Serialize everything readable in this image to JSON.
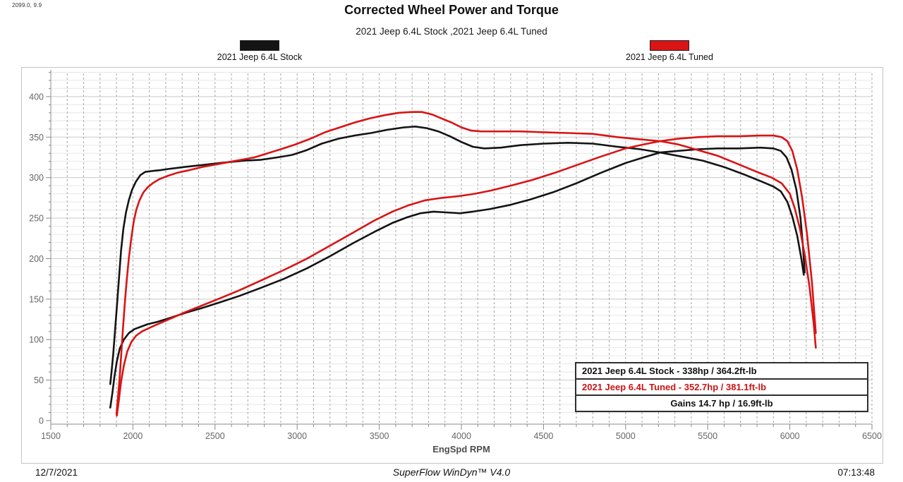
{
  "corner_readout": "2099.0, 9.9",
  "header": {
    "title": "Corrected Wheel Power and Torque",
    "subtitle": "2021 Jeep 6.4L Stock ,2021 Jeep 6.4L Tuned"
  },
  "legend": {
    "stock": {
      "label": "2021 Jeep 6.4L Stock",
      "color": "#141414"
    },
    "tuned": {
      "label": "2021 Jeep 6.4L Tuned",
      "color": "#d91414"
    }
  },
  "results_box": {
    "stock_line": "2021 Jeep 6.4L Stock - 338hp / 364.2ft-lb",
    "tuned_line": "2021 Jeep 6.4L Tuned - 352.7hp / 381.1ft-lb",
    "gains_line": "Gains 14.7 hp / 16.9ft-lb"
  },
  "footer": {
    "date": "12/7/2021",
    "software": "SuperFlow WinDyn™ V4.0",
    "time": "07:13:48"
  },
  "chart_data": {
    "type": "line",
    "title": "Corrected Wheel Power and Torque",
    "subtitle": "2021 Jeep 6.4L Stock ,2021 Jeep 6.4L Tuned",
    "xlabel": "EngSpd RPM",
    "ylabel": "",
    "xlim": [
      1500,
      6500
    ],
    "ylim": [
      0,
      435
    ],
    "x_ticks": [
      1500,
      2000,
      2500,
      3000,
      3500,
      4000,
      4500,
      5000,
      5500,
      6000,
      6500
    ],
    "y_ticks": [
      0,
      50,
      100,
      150,
      200,
      250,
      300,
      350,
      400
    ],
    "x_minor_step": 100,
    "y_minor_step": 10,
    "grid": {
      "h_minor": "#e7e7e7",
      "h_major": "#c9c9c9",
      "v_dashed": "#a6a6a6",
      "axis": "#8a8a8a",
      "tick_label": "#666666"
    },
    "legend_position": "top",
    "peak_results": {
      "stock": {
        "hp": 338,
        "ft_lb": 364.2
      },
      "tuned": {
        "hp": 352.7,
        "ft_lb": 381.1
      },
      "gains": {
        "hp": 14.7,
        "ft_lb": 16.9
      }
    },
    "series": [
      {
        "name": "2021 Jeep 6.4L Stock - Torque (ft-lb)",
        "color": "#141414",
        "points": [
          [
            1862,
            45
          ],
          [
            1870,
            60
          ],
          [
            1880,
            82
          ],
          [
            1890,
            108
          ],
          [
            1902,
            140
          ],
          [
            1915,
            175
          ],
          [
            1928,
            210
          ],
          [
            1942,
            237
          ],
          [
            1958,
            257
          ],
          [
            1975,
            272
          ],
          [
            1995,
            285
          ],
          [
            2018,
            295
          ],
          [
            2045,
            303
          ],
          [
            2075,
            307
          ],
          [
            2110,
            308
          ],
          [
            2160,
            309
          ],
          [
            2230,
            311
          ],
          [
            2310,
            313
          ],
          [
            2400,
            315
          ],
          [
            2490,
            317
          ],
          [
            2580,
            319
          ],
          [
            2680,
            321
          ],
          [
            2780,
            322
          ],
          [
            2880,
            325
          ],
          [
            2970,
            328
          ],
          [
            3060,
            334
          ],
          [
            3150,
            342
          ],
          [
            3250,
            348
          ],
          [
            3350,
            352
          ],
          [
            3450,
            355
          ],
          [
            3550,
            359
          ],
          [
            3650,
            362
          ],
          [
            3720,
            363
          ],
          [
            3790,
            361
          ],
          [
            3860,
            357
          ],
          [
            3930,
            351
          ],
          [
            4000,
            344
          ],
          [
            4070,
            338
          ],
          [
            4140,
            336
          ],
          [
            4240,
            337
          ],
          [
            4360,
            340
          ],
          [
            4500,
            342
          ],
          [
            4650,
            343
          ],
          [
            4800,
            342
          ],
          [
            4950,
            338
          ],
          [
            5090,
            335
          ],
          [
            5210,
            331
          ],
          [
            5340,
            326
          ],
          [
            5470,
            321
          ],
          [
            5600,
            313
          ],
          [
            5720,
            304
          ],
          [
            5830,
            295
          ],
          [
            5900,
            289
          ],
          [
            5945,
            283
          ],
          [
            5985,
            270
          ],
          [
            6015,
            252
          ],
          [
            6045,
            228
          ],
          [
            6070,
            200
          ],
          [
            6085,
            180
          ]
        ]
      },
      {
        "name": "2021 Jeep 6.4L Stock - Power (hp)",
        "color": "#141414",
        "points": [
          [
            1862,
            16
          ],
          [
            1875,
            34
          ],
          [
            1888,
            55
          ],
          [
            1902,
            73
          ],
          [
            1920,
            89
          ],
          [
            1945,
            100
          ],
          [
            1975,
            108
          ],
          [
            2010,
            113
          ],
          [
            2050,
            116
          ],
          [
            2090,
            119
          ],
          [
            2150,
            122
          ],
          [
            2230,
            127
          ],
          [
            2320,
            133
          ],
          [
            2420,
            139
          ],
          [
            2530,
            146
          ],
          [
            2650,
            154
          ],
          [
            2780,
            164
          ],
          [
            2920,
            175
          ],
          [
            3060,
            188
          ],
          [
            3200,
            203
          ],
          [
            3340,
            219
          ],
          [
            3470,
            233
          ],
          [
            3580,
            244
          ],
          [
            3670,
            251
          ],
          [
            3750,
            256
          ],
          [
            3830,
            258
          ],
          [
            3910,
            257
          ],
          [
            3990,
            256
          ],
          [
            4070,
            258
          ],
          [
            4170,
            261
          ],
          [
            4290,
            266
          ],
          [
            4420,
            273
          ],
          [
            4560,
            282
          ],
          [
            4700,
            293
          ],
          [
            4850,
            306
          ],
          [
            5000,
            318
          ],
          [
            5110,
            325
          ],
          [
            5210,
            331
          ],
          [
            5320,
            333
          ],
          [
            5440,
            335
          ],
          [
            5560,
            336
          ],
          [
            5690,
            336
          ],
          [
            5820,
            337
          ],
          [
            5900,
            336
          ],
          [
            5945,
            333
          ],
          [
            5980,
            325
          ],
          [
            6010,
            310
          ],
          [
            6040,
            285
          ],
          [
            6065,
            250
          ],
          [
            6080,
            215
          ],
          [
            6090,
            183
          ]
        ]
      },
      {
        "name": "2021 Jeep 6.4L Tuned - Torque (ft-lb)",
        "color": "#d91414",
        "points": [
          [
            1900,
            8
          ],
          [
            1910,
            30
          ],
          [
            1920,
            55
          ],
          [
            1930,
            85
          ],
          [
            1940,
            115
          ],
          [
            1952,
            148
          ],
          [
            1963,
            175
          ],
          [
            1975,
            200
          ],
          [
            1990,
            225
          ],
          [
            2005,
            246
          ],
          [
            2020,
            260
          ],
          [
            2040,
            272
          ],
          [
            2065,
            282
          ],
          [
            2090,
            288
          ],
          [
            2120,
            293
          ],
          [
            2160,
            298
          ],
          [
            2210,
            302
          ],
          [
            2270,
            306
          ],
          [
            2340,
            309
          ],
          [
            2420,
            313
          ],
          [
            2500,
            316
          ],
          [
            2580,
            319
          ],
          [
            2660,
            322
          ],
          [
            2740,
            325
          ],
          [
            2820,
            330
          ],
          [
            2900,
            335
          ],
          [
            2990,
            341
          ],
          [
            3080,
            348
          ],
          [
            3170,
            356
          ],
          [
            3260,
            362
          ],
          [
            3350,
            368
          ],
          [
            3440,
            373
          ],
          [
            3530,
            377
          ],
          [
            3620,
            380
          ],
          [
            3700,
            381
          ],
          [
            3760,
            381
          ],
          [
            3820,
            378
          ],
          [
            3880,
            373
          ],
          [
            3940,
            368
          ],
          [
            4000,
            362
          ],
          [
            4060,
            358
          ],
          [
            4120,
            357
          ],
          [
            4220,
            357
          ],
          [
            4360,
            357
          ],
          [
            4500,
            356
          ],
          [
            4650,
            355
          ],
          [
            4800,
            354
          ],
          [
            4950,
            350
          ],
          [
            5100,
            347
          ],
          [
            5210,
            345
          ],
          [
            5320,
            341
          ],
          [
            5440,
            334
          ],
          [
            5560,
            327
          ],
          [
            5680,
            317
          ],
          [
            5800,
            307
          ],
          [
            5890,
            300
          ],
          [
            5950,
            293
          ],
          [
            6000,
            280
          ],
          [
            6030,
            262
          ],
          [
            6060,
            238
          ],
          [
            6090,
            205
          ],
          [
            6120,
            165
          ],
          [
            6145,
            120
          ],
          [
            6158,
            90
          ]
        ]
      },
      {
        "name": "2021 Jeep 6.4L Tuned - Power (hp)",
        "color": "#d91414",
        "points": [
          [
            1902,
            6
          ],
          [
            1915,
            26
          ],
          [
            1928,
            48
          ],
          [
            1945,
            68
          ],
          [
            1965,
            85
          ],
          [
            1990,
            97
          ],
          [
            2020,
            105
          ],
          [
            2055,
            110
          ],
          [
            2095,
            114
          ],
          [
            2150,
            119
          ],
          [
            2230,
            126
          ],
          [
            2320,
            134
          ],
          [
            2420,
            142
          ],
          [
            2530,
            151
          ],
          [
            2650,
            161
          ],
          [
            2780,
            173
          ],
          [
            2920,
            186
          ],
          [
            3060,
            200
          ],
          [
            3200,
            216
          ],
          [
            3340,
            232
          ],
          [
            3470,
            247
          ],
          [
            3580,
            258
          ],
          [
            3680,
            266
          ],
          [
            3780,
            272
          ],
          [
            3880,
            275
          ],
          [
            3980,
            277
          ],
          [
            4080,
            280
          ],
          [
            4180,
            284
          ],
          [
            4300,
            290
          ],
          [
            4430,
            297
          ],
          [
            4570,
            306
          ],
          [
            4710,
            316
          ],
          [
            4850,
            326
          ],
          [
            5000,
            336
          ],
          [
            5110,
            341
          ],
          [
            5210,
            345
          ],
          [
            5320,
            348
          ],
          [
            5440,
            350
          ],
          [
            5560,
            351
          ],
          [
            5690,
            351
          ],
          [
            5820,
            352
          ],
          [
            5900,
            352
          ],
          [
            5950,
            350
          ],
          [
            5985,
            345
          ],
          [
            6015,
            333
          ],
          [
            6045,
            310
          ],
          [
            6075,
            275
          ],
          [
            6105,
            230
          ],
          [
            6135,
            170
          ],
          [
            6158,
            108
          ]
        ]
      }
    ]
  }
}
